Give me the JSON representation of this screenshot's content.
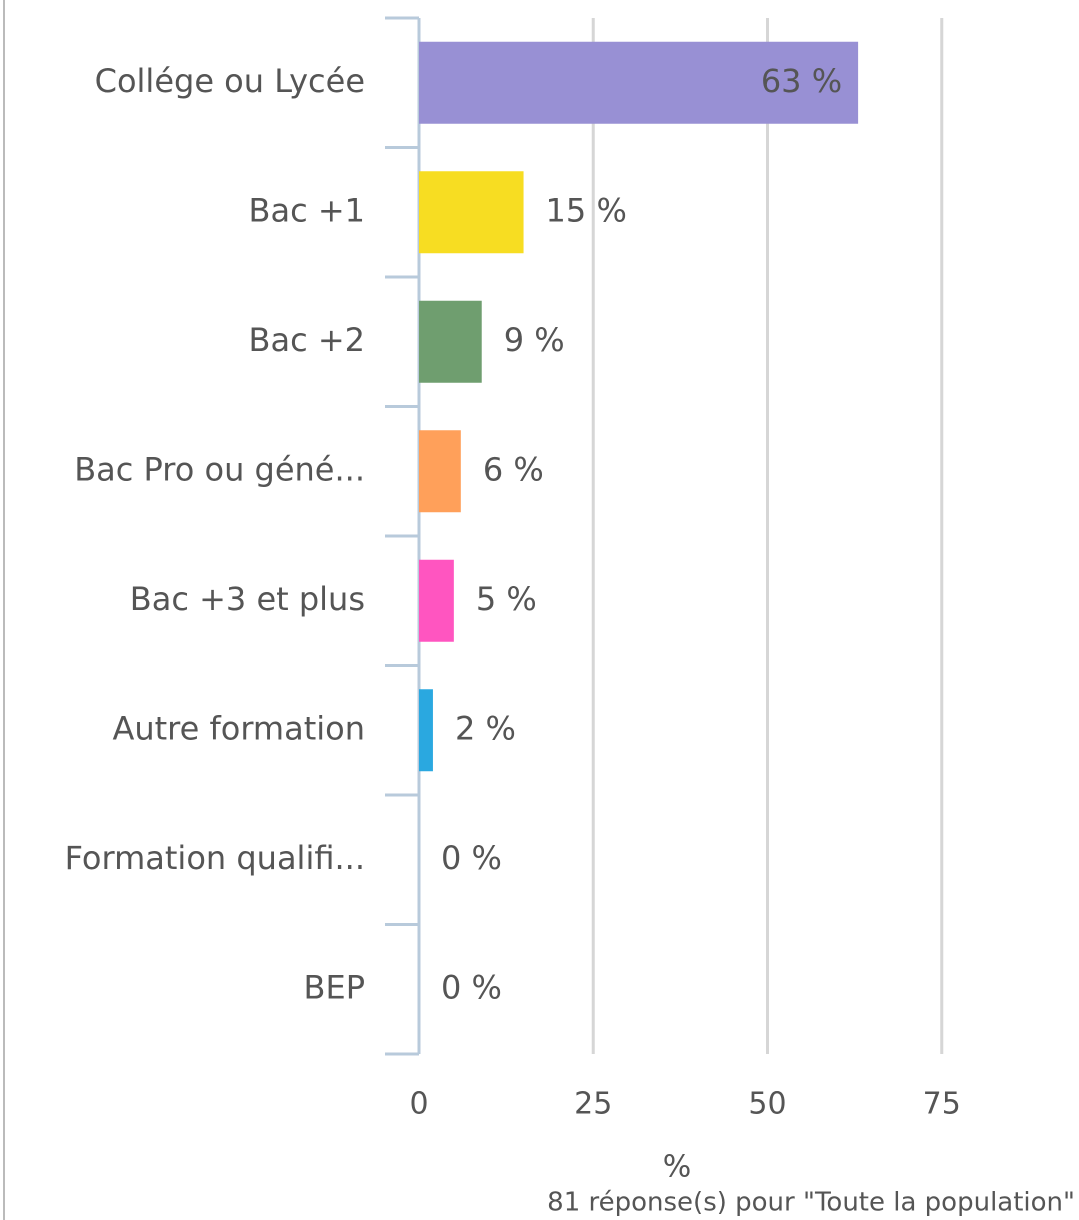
{
  "chart_data": {
    "type": "bar",
    "orientation": "horizontal",
    "categories": [
      "Collége ou Lycée",
      "Bac +1",
      "Bac +2",
      "Bac Pro ou géné...",
      "Bac +3 et plus",
      "Autre formation",
      "Formation qualifi...",
      "BEP"
    ],
    "values": [
      63,
      15,
      9,
      6,
      5,
      2,
      0,
      0
    ],
    "value_labels": [
      "63 %",
      "15 %",
      "9 %",
      "6 %",
      "5 %",
      "2 %",
      "0 %",
      "0 %"
    ],
    "colors": [
      "#9890d4",
      "#f7dd22",
      "#6f9e6f",
      "#ffa05a",
      "#ff55c0",
      "#2aa8e0",
      "#888888",
      "#888888"
    ],
    "xlim": [
      0,
      80
    ],
    "xticks": [
      0,
      25,
      50,
      75
    ],
    "grid": true,
    "xlabel": "%",
    "footnote": "81 réponse(s) pour \"Toute la population\""
  }
}
